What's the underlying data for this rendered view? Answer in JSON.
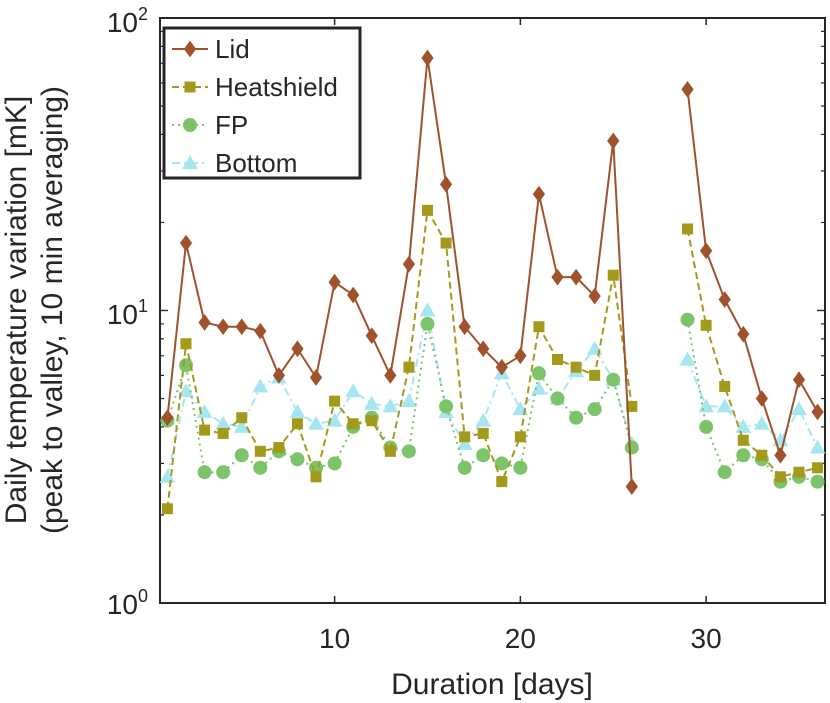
{
  "chart_data": {
    "type": "line",
    "title": "",
    "xlabel": "Duration [days]",
    "ylabel_line1": "Daily temperature variation [mK]",
    "ylabel_line2": "(peak to valley, 10 min averaging)",
    "yscale": "log",
    "xlim": [
      0.6,
      36.4
    ],
    "ylim": [
      1,
      100
    ],
    "x_ticks": [
      10,
      20,
      30
    ],
    "x_tick_labels": [
      "10",
      "20",
      "30"
    ],
    "y_ticks": [
      1,
      10,
      100
    ],
    "y_tick_base": "10",
    "y_tick_exponents": [
      "0",
      "1",
      "2"
    ],
    "legend_position": "top-left",
    "x": [
      1,
      2,
      3,
      4,
      5,
      6,
      7,
      8,
      9,
      10,
      11,
      12,
      13,
      14,
      15,
      16,
      17,
      18,
      19,
      20,
      21,
      22,
      23,
      24,
      25,
      26,
      27,
      28,
      29,
      30,
      31,
      32,
      33,
      34,
      35,
      36
    ],
    "series": [
      {
        "name": "Lid",
        "color": "#A0522D",
        "marker": "diamond",
        "dash": "solid",
        "values": [
          4.3,
          17,
          9.1,
          8.8,
          8.8,
          8.5,
          6.0,
          7.4,
          5.9,
          12.5,
          11.3,
          8.2,
          6.0,
          14.4,
          73,
          27,
          8.8,
          7.4,
          6.4,
          7.0,
          25,
          13,
          13,
          11.2,
          38,
          2.5,
          null,
          null,
          57,
          16,
          10.9,
          8.3,
          5.0,
          3.2,
          5.8,
          4.5
        ]
      },
      {
        "name": "Heatshield",
        "color": "#A39A1C",
        "marker": "square",
        "dash": "dashed",
        "values": [
          2.1,
          7.7,
          3.9,
          3.8,
          4.3,
          3.3,
          3.4,
          4.1,
          2.7,
          4.9,
          4.1,
          4.2,
          3.3,
          6.4,
          22,
          17,
          3.7,
          3.8,
          2.6,
          3.7,
          8.8,
          6.8,
          6.4,
          6.0,
          13.2,
          4.7,
          null,
          null,
          19,
          8.9,
          5.5,
          3.6,
          3.2,
          2.7,
          2.8,
          2.9
        ]
      },
      {
        "name": "FP",
        "color": "#7CC36A",
        "marker": "circle",
        "dash": "dotted",
        "values": [
          4.2,
          6.5,
          2.8,
          2.8,
          3.2,
          2.9,
          3.3,
          3.1,
          2.9,
          3.0,
          4.0,
          4.3,
          3.4,
          3.3,
          9.0,
          4.7,
          2.9,
          3.2,
          3.0,
          2.9,
          6.1,
          5.0,
          4.3,
          4.6,
          5.8,
          3.4,
          null,
          null,
          9.3,
          4.0,
          2.8,
          3.2,
          3.1,
          2.6,
          2.7,
          2.6
        ]
      },
      {
        "name": "Bottom",
        "color": "#A6E6F0",
        "marker": "triangle",
        "dash": "dashdot",
        "values": [
          2.7,
          5.3,
          4.5,
          4.1,
          4.0,
          5.5,
          5.9,
          4.5,
          4.1,
          4.2,
          5.3,
          4.8,
          4.7,
          4.9,
          10.0,
          4.5,
          3.5,
          4.2,
          6.1,
          4.6,
          5.4,
          5.0,
          6.2,
          7.4,
          5.8,
          3.5,
          null,
          null,
          6.8,
          4.7,
          4.7,
          4.0,
          4.1,
          3.6,
          4.6,
          3.4
        ]
      }
    ]
  }
}
